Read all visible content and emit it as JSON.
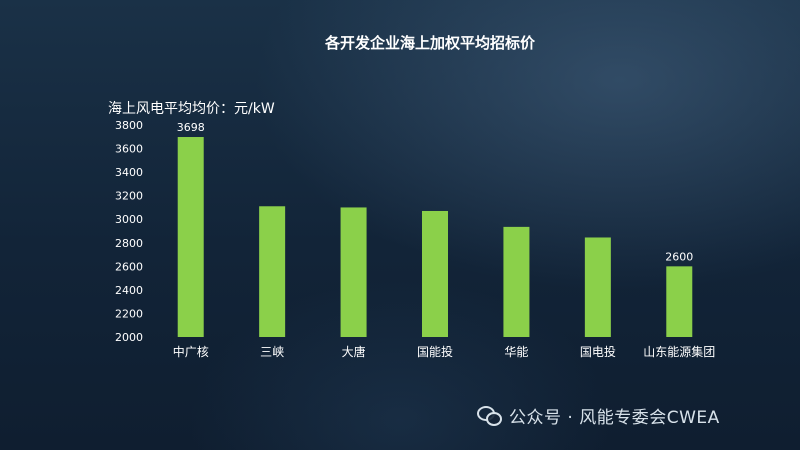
{
  "chart_data": {
    "type": "bar",
    "title": "各开发企业海上加权平均招标价",
    "ylabel": "海上风电平均均价：元/kW",
    "xlabel": "",
    "categories": [
      "中广核",
      "三峡",
      "大唐",
      "国能投",
      "华能",
      "国电投",
      "山东能源集团"
    ],
    "values": [
      3698,
      3110,
      3100,
      3070,
      2935,
      2845,
      2600
    ],
    "data_labels": [
      "3698",
      "",
      "",
      "",
      "",
      "",
      "2600"
    ],
    "ylim": [
      2000,
      3800
    ],
    "yticks": [
      2000,
      2200,
      2400,
      2600,
      2800,
      3000,
      3200,
      3400,
      3600,
      3800
    ],
    "grid": false,
    "legend": "none",
    "bar_color": "#8bd04a"
  },
  "watermark": {
    "text": "公众号 · 风能专委会CWEA",
    "icon": "wechat-icon"
  }
}
